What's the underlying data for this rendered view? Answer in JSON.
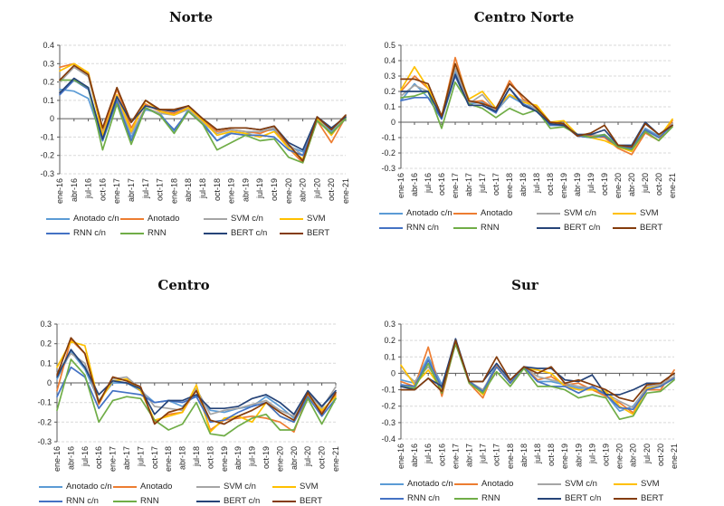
{
  "figure": {
    "background": "#ffffff"
  },
  "chart_data": [
    {
      "id": "norte",
      "type": "line",
      "title": "Norte",
      "xlabel": "",
      "ylabel": "",
      "ylim": [
        -0.3,
        0.4
      ],
      "ytick_step": 0.1,
      "grid": true,
      "legend_position": "bottom",
      "x": [
        "ene-16",
        "abr-16",
        "jul-16",
        "oct-16",
        "ene-17",
        "abr-17",
        "jul-17",
        "oct-17",
        "ene-18",
        "abr-18",
        "jul-18",
        "oct-18",
        "ene-19",
        "abr-19",
        "jul-19",
        "oct-19",
        "ene-20",
        "abr-20",
        "jul-20",
        "oct-20",
        "ene-21"
      ],
      "series": [
        {
          "name": "Anotado c/n",
          "color": "#5B9BD5",
          "values": [
            0.16,
            0.15,
            0.11,
            -0.12,
            0.1,
            -0.1,
            0.05,
            0.03,
            -0.07,
            0.05,
            -0.02,
            -0.12,
            -0.07,
            -0.08,
            -0.07,
            -0.06,
            -0.15,
            -0.18,
            0.0,
            -0.07,
            0.01
          ]
        },
        {
          "name": "Anotado",
          "color": "#ED7D31",
          "values": [
            0.28,
            0.3,
            0.25,
            -0.07,
            0.16,
            -0.05,
            0.08,
            0.04,
            0.03,
            0.06,
            -0.01,
            -0.07,
            -0.06,
            -0.07,
            -0.08,
            -0.05,
            -0.16,
            -0.24,
            -0.01,
            -0.13,
            0.01
          ]
        },
        {
          "name": "SVM c/n",
          "color": "#A5A5A5",
          "values": [
            0.2,
            0.28,
            0.23,
            -0.08,
            0.11,
            -0.08,
            0.06,
            0.03,
            0.02,
            0.05,
            -0.02,
            -0.08,
            -0.06,
            -0.07,
            -0.07,
            -0.05,
            -0.14,
            -0.2,
            0.0,
            -0.08,
            0.01
          ]
        },
        {
          "name": "SVM",
          "color": "#FFC000",
          "values": [
            0.26,
            0.3,
            0.25,
            -0.09,
            0.13,
            -0.07,
            0.1,
            0.04,
            0.02,
            0.06,
            -0.01,
            -0.09,
            -0.07,
            -0.08,
            -0.1,
            -0.07,
            -0.16,
            -0.22,
            0.0,
            -0.09,
            0.01
          ]
        },
        {
          "name": "RNN c/n",
          "color": "#4472C4",
          "values": [
            0.13,
            0.21,
            0.16,
            -0.12,
            0.1,
            -0.12,
            0.06,
            0.02,
            -0.06,
            0.04,
            -0.03,
            -0.12,
            -0.08,
            -0.09,
            -0.09,
            -0.1,
            -0.17,
            -0.2,
            -0.01,
            -0.08,
            0.0
          ]
        },
        {
          "name": "RNN",
          "color": "#70AD47",
          "values": [
            0.21,
            0.21,
            0.17,
            -0.17,
            0.08,
            -0.14,
            0.06,
            0.02,
            -0.08,
            0.04,
            -0.03,
            -0.17,
            -0.13,
            -0.09,
            -0.12,
            -0.11,
            -0.21,
            -0.24,
            -0.01,
            -0.08,
            0.0
          ]
        },
        {
          "name": "BERT c/n",
          "color": "#264478",
          "values": [
            0.14,
            0.22,
            0.17,
            -0.11,
            0.12,
            -0.02,
            0.07,
            0.05,
            0.04,
            0.07,
            0.0,
            -0.06,
            -0.05,
            -0.05,
            -0.06,
            -0.04,
            -0.13,
            -0.17,
            0.01,
            -0.05,
            0.01
          ]
        },
        {
          "name": "BERT",
          "color": "#843C0C",
          "values": [
            0.21,
            0.29,
            0.24,
            -0.05,
            0.17,
            -0.02,
            0.1,
            0.05,
            0.05,
            0.07,
            0.0,
            -0.06,
            -0.05,
            -0.05,
            -0.06,
            -0.04,
            -0.14,
            -0.23,
            0.01,
            -0.06,
            0.02
          ]
        }
      ]
    },
    {
      "id": "centro-norte",
      "type": "line",
      "title": "Centro Norte",
      "xlabel": "",
      "ylabel": "",
      "ylim": [
        -0.3,
        0.5
      ],
      "ytick_step": 0.1,
      "grid": true,
      "legend_position": "bottom",
      "x": [
        "ene-16",
        "abr-16",
        "jul-16",
        "oct-16",
        "ene-17",
        "abr-17",
        "jul-17",
        "oct-17",
        "ene-18",
        "abr-18",
        "jul-18",
        "oct-18",
        "ene-19",
        "abr-19",
        "jul-19",
        "oct-19",
        "ene-20",
        "abr-20",
        "jul-20",
        "oct-20",
        "ene-21"
      ],
      "series": [
        {
          "name": "Anotado c/n",
          "color": "#5B9BD5",
          "values": [
            0.14,
            0.25,
            0.16,
            0.02,
            0.33,
            0.12,
            0.13,
            0.07,
            0.17,
            0.12,
            0.08,
            -0.02,
            -0.02,
            -0.08,
            -0.09,
            -0.08,
            -0.15,
            -0.17,
            -0.04,
            -0.09,
            -0.02
          ]
        },
        {
          "name": "Anotado",
          "color": "#ED7D31",
          "values": [
            0.2,
            0.3,
            0.22,
            0.03,
            0.42,
            0.13,
            0.14,
            0.08,
            0.27,
            0.15,
            0.1,
            -0.01,
            -0.02,
            -0.09,
            -0.09,
            -0.1,
            -0.17,
            -0.21,
            -0.07,
            -0.12,
            0.01
          ]
        },
        {
          "name": "SVM c/n",
          "color": "#A5A5A5",
          "values": [
            0.17,
            0.24,
            0.2,
            0.03,
            0.35,
            0.12,
            0.18,
            0.07,
            0.18,
            0.14,
            0.08,
            -0.02,
            -0.01,
            -0.08,
            -0.08,
            -0.09,
            -0.15,
            -0.18,
            -0.05,
            -0.1,
            -0.01
          ]
        },
        {
          "name": "SVM",
          "color": "#FFC000",
          "values": [
            0.21,
            0.36,
            0.22,
            0.04,
            0.38,
            0.15,
            0.2,
            0.09,
            0.18,
            0.13,
            0.11,
            0.0,
            0.01,
            -0.08,
            -0.1,
            -0.12,
            -0.16,
            -0.19,
            -0.05,
            -0.1,
            0.02
          ]
        },
        {
          "name": "RNN c/n",
          "color": "#4472C4",
          "values": [
            0.14,
            0.16,
            0.16,
            0.02,
            0.3,
            0.11,
            0.11,
            0.06,
            0.22,
            0.12,
            0.07,
            -0.02,
            -0.02,
            -0.09,
            -0.1,
            -0.09,
            -0.16,
            -0.17,
            -0.05,
            -0.1,
            -0.02
          ]
        },
        {
          "name": "RNN",
          "color": "#70AD47",
          "values": [
            0.16,
            0.17,
            0.2,
            -0.04,
            0.26,
            0.12,
            0.09,
            0.03,
            0.09,
            0.05,
            0.08,
            -0.04,
            -0.03,
            -0.08,
            -0.1,
            -0.08,
            -0.16,
            -0.18,
            -0.06,
            -0.12,
            -0.03
          ]
        },
        {
          "name": "BERT c/n",
          "color": "#264478",
          "values": [
            0.2,
            0.2,
            0.2,
            0.03,
            0.31,
            0.11,
            0.11,
            0.07,
            0.22,
            0.11,
            0.07,
            -0.01,
            -0.02,
            -0.08,
            -0.08,
            -0.05,
            -0.15,
            -0.15,
            0.0,
            -0.08,
            -0.02
          ]
        },
        {
          "name": "BERT",
          "color": "#843C0C",
          "values": [
            0.28,
            0.28,
            0.25,
            0.04,
            0.38,
            0.14,
            0.12,
            0.09,
            0.25,
            0.17,
            0.09,
            0.0,
            -0.01,
            -0.09,
            -0.07,
            -0.02,
            -0.15,
            -0.16,
            -0.01,
            -0.08,
            -0.02
          ]
        }
      ]
    },
    {
      "id": "centro",
      "type": "line",
      "title": "Centro",
      "xlabel": "",
      "ylabel": "",
      "ylim": [
        -0.3,
        0.3
      ],
      "ytick_step": 0.1,
      "grid": true,
      "legend_position": "bottom",
      "x": [
        "ene-16",
        "abr-16",
        "jul-16",
        "oct-16",
        "ene-17",
        "abr-17",
        "jul-17",
        "oct-17",
        "ene-18",
        "abr-18",
        "jul-18",
        "oct-18",
        "ene-19",
        "abr-19",
        "jul-19",
        "oct-19",
        "ene-20",
        "abr-20",
        "jul-20",
        "oct-20",
        "ene-21"
      ],
      "series": [
        {
          "name": "Anotado c/n",
          "color": "#5B9BD5",
          "values": [
            0.02,
            0.16,
            0.07,
            -0.09,
            0.0,
            0.0,
            -0.04,
            -0.1,
            -0.09,
            -0.12,
            -0.06,
            -0.14,
            -0.15,
            -0.13,
            -0.12,
            -0.07,
            -0.12,
            -0.18,
            -0.06,
            -0.12,
            -0.05
          ]
        },
        {
          "name": "Anotado",
          "color": "#ED7D31",
          "values": [
            -0.04,
            0.22,
            0.15,
            -0.11,
            0.03,
            0.01,
            -0.03,
            -0.2,
            -0.16,
            -0.15,
            -0.03,
            -0.24,
            -0.19,
            -0.18,
            -0.17,
            -0.18,
            -0.2,
            -0.25,
            -0.06,
            -0.15,
            -0.06
          ]
        },
        {
          "name": "SVM c/n",
          "color": "#A5A5A5",
          "values": [
            0.05,
            0.15,
            0.1,
            -0.1,
            0.02,
            0.03,
            -0.03,
            -0.12,
            -0.13,
            -0.14,
            -0.03,
            -0.16,
            -0.14,
            -0.13,
            -0.11,
            -0.09,
            -0.14,
            -0.17,
            -0.05,
            -0.13,
            -0.02
          ]
        },
        {
          "name": "SVM",
          "color": "#FFC000",
          "values": [
            0.08,
            0.21,
            0.19,
            -0.1,
            0.01,
            0.02,
            -0.04,
            -0.19,
            -0.17,
            -0.15,
            -0.01,
            -0.25,
            -0.18,
            -0.17,
            -0.2,
            -0.1,
            -0.17,
            -0.2,
            -0.07,
            -0.14,
            -0.07
          ]
        },
        {
          "name": "RNN c/n",
          "color": "#4472C4",
          "values": [
            -0.07,
            0.08,
            0.03,
            -0.13,
            -0.04,
            -0.05,
            -0.06,
            -0.1,
            -0.09,
            -0.1,
            -0.07,
            -0.2,
            -0.19,
            -0.15,
            -0.12,
            -0.1,
            -0.17,
            -0.2,
            -0.07,
            -0.17,
            -0.08
          ]
        },
        {
          "name": "RNN",
          "color": "#70AD47",
          "values": [
            -0.14,
            0.12,
            0.04,
            -0.2,
            -0.09,
            -0.07,
            -0.08,
            -0.19,
            -0.24,
            -0.21,
            -0.1,
            -0.26,
            -0.27,
            -0.22,
            -0.18,
            -0.16,
            -0.24,
            -0.24,
            -0.08,
            -0.21,
            -0.08
          ]
        },
        {
          "name": "BERT c/n",
          "color": "#264478",
          "values": [
            0.03,
            0.17,
            0.08,
            -0.06,
            0.01,
            0.0,
            -0.03,
            -0.16,
            -0.09,
            -0.09,
            -0.06,
            -0.13,
            -0.13,
            -0.12,
            -0.08,
            -0.06,
            -0.1,
            -0.16,
            -0.04,
            -0.12,
            -0.04
          ]
        },
        {
          "name": "BERT",
          "color": "#843C0C",
          "values": [
            0.04,
            0.23,
            0.15,
            -0.1,
            0.03,
            0.01,
            -0.02,
            -0.21,
            -0.15,
            -0.13,
            -0.04,
            -0.19,
            -0.21,
            -0.17,
            -0.14,
            -0.1,
            -0.15,
            -0.19,
            -0.05,
            -0.16,
            -0.05
          ]
        }
      ]
    },
    {
      "id": "sur",
      "type": "line",
      "title": "Sur",
      "xlabel": "",
      "ylabel": "",
      "ylim": [
        -0.4,
        0.3
      ],
      "ytick_step": 0.1,
      "grid": true,
      "legend_position": "bottom",
      "x": [
        "ene-16",
        "abr-16",
        "jul-16",
        "oct-16",
        "ene-17",
        "abr-17",
        "jul-17",
        "oct-17",
        "ene-18",
        "abr-18",
        "jul-18",
        "oct-18",
        "ene-19",
        "abr-19",
        "jul-19",
        "oct-19",
        "ene-20",
        "abr-20",
        "jul-20",
        "oct-20",
        "ene-21"
      ],
      "series": [
        {
          "name": "Anotado c/n",
          "color": "#5B9BD5",
          "values": [
            -0.04,
            -0.06,
            0.1,
            -0.07,
            0.19,
            -0.05,
            -0.11,
            0.06,
            -0.05,
            0.04,
            -0.05,
            -0.05,
            -0.07,
            -0.09,
            -0.09,
            -0.13,
            -0.23,
            -0.2,
            -0.09,
            -0.08,
            -0.02
          ]
        },
        {
          "name": "Anotado",
          "color": "#ED7D31",
          "values": [
            -0.05,
            -0.08,
            0.16,
            -0.14,
            0.19,
            -0.06,
            -0.15,
            0.05,
            -0.06,
            0.04,
            -0.04,
            -0.02,
            -0.07,
            -0.06,
            -0.1,
            -0.14,
            -0.18,
            -0.24,
            -0.1,
            -0.1,
            0.02
          ]
        },
        {
          "name": "SVM c/n",
          "color": "#A5A5A5",
          "values": [
            0.02,
            -0.05,
            0.04,
            -0.08,
            0.18,
            -0.05,
            -0.1,
            0.04,
            -0.05,
            0.04,
            -0.02,
            -0.04,
            -0.06,
            -0.08,
            -0.09,
            -0.12,
            -0.17,
            -0.21,
            -0.08,
            -0.07,
            -0.02
          ]
        },
        {
          "name": "SVM",
          "color": "#FFC000",
          "values": [
            0.05,
            -0.07,
            0.02,
            -0.1,
            0.18,
            -0.05,
            -0.13,
            0.04,
            -0.06,
            0.03,
            0.02,
            0.0,
            -0.08,
            -0.1,
            -0.1,
            -0.11,
            -0.2,
            -0.25,
            -0.09,
            -0.08,
            -0.03
          ]
        },
        {
          "name": "RNN c/n",
          "color": "#4472C4",
          "values": [
            -0.07,
            -0.08,
            0.08,
            -0.09,
            0.18,
            -0.05,
            -0.11,
            0.04,
            -0.06,
            0.04,
            -0.05,
            -0.08,
            -0.08,
            -0.12,
            -0.08,
            -0.13,
            -0.21,
            -0.22,
            -0.1,
            -0.08,
            -0.03
          ]
        },
        {
          "name": "RNN",
          "color": "#70AD47",
          "values": [
            -0.08,
            -0.09,
            0.06,
            -0.12,
            0.18,
            -0.06,
            -0.12,
            0.01,
            -0.08,
            0.03,
            -0.08,
            -0.08,
            -0.1,
            -0.15,
            -0.13,
            -0.15,
            -0.28,
            -0.26,
            -0.12,
            -0.11,
            -0.04
          ]
        },
        {
          "name": "BERT c/n",
          "color": "#264478",
          "values": [
            -0.08,
            -0.1,
            -0.03,
            -0.08,
            0.21,
            -0.05,
            -0.05,
            0.06,
            -0.04,
            0.04,
            0.03,
            0.03,
            -0.04,
            -0.05,
            -0.01,
            -0.13,
            -0.13,
            -0.1,
            -0.06,
            -0.06,
            0.0
          ]
        },
        {
          "name": "BERT",
          "color": "#843C0C",
          "values": [
            -0.1,
            -0.1,
            -0.03,
            -0.11,
            0.2,
            -0.05,
            -0.05,
            0.1,
            -0.04,
            0.04,
            0.0,
            0.04,
            -0.06,
            -0.04,
            -0.07,
            -0.1,
            -0.15,
            -0.17,
            -0.07,
            -0.06,
            0.0
          ]
        }
      ]
    }
  ]
}
